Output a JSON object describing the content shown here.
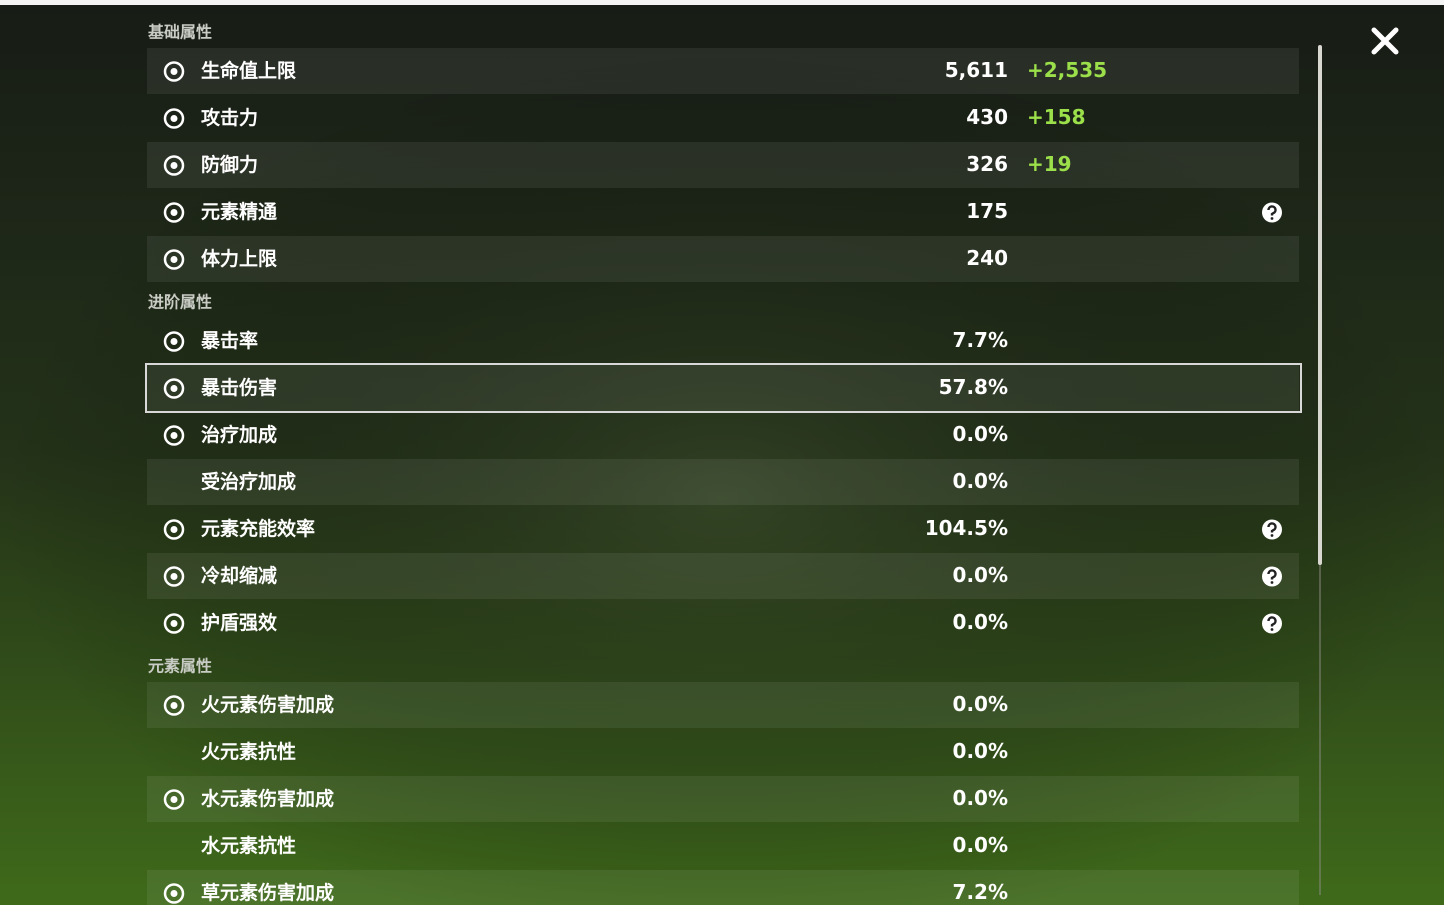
{
  "sections": [
    {
      "title": "基础属性",
      "rows": [
        {
          "label": "生命值上限",
          "value": "5,611",
          "bonus": "+2,535",
          "icon": true
        },
        {
          "label": "攻击力",
          "value": "430",
          "bonus": "+158",
          "icon": true
        },
        {
          "label": "防御力",
          "value": "326",
          "bonus": "+19",
          "icon": true
        },
        {
          "label": "元素精通",
          "value": "175",
          "icon": true,
          "help": true
        },
        {
          "label": "体力上限",
          "value": "240",
          "icon": true
        }
      ]
    },
    {
      "title": "进阶属性",
      "rows": [
        {
          "label": "暴击率",
          "value": "7.7%",
          "icon": true
        },
        {
          "label": "暴击伤害",
          "value": "57.8%",
          "icon": true,
          "selected": true
        },
        {
          "label": "治疗加成",
          "value": "0.0%",
          "icon": true
        },
        {
          "label": "受治疗加成",
          "value": "0.0%",
          "icon": false
        },
        {
          "label": "元素充能效率",
          "value": "104.5%",
          "icon": true,
          "help": true
        },
        {
          "label": "冷却缩减",
          "value": "0.0%",
          "icon": true,
          "help": true
        },
        {
          "label": "护盾强效",
          "value": "0.0%",
          "icon": true,
          "help": true
        }
      ]
    },
    {
      "title": "元素属性",
      "rows": [
        {
          "label": "火元素伤害加成",
          "value": "0.0%",
          "icon": true
        },
        {
          "label": "火元素抗性",
          "value": "0.0%",
          "icon": false
        },
        {
          "label": "水元素伤害加成",
          "value": "0.0%",
          "icon": true
        },
        {
          "label": "水元素抗性",
          "value": "0.0%",
          "icon": false
        },
        {
          "label": "草元素伤害加成",
          "value": "7.2%",
          "icon": true
        }
      ]
    }
  ]
}
